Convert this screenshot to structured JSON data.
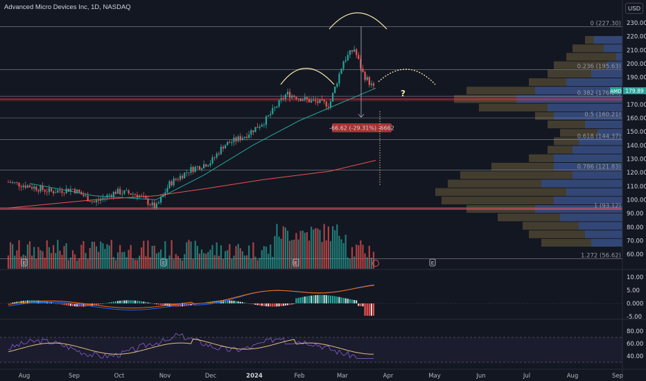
{
  "header": {
    "title": "Advanced Micro Devices Inc, 1D, NASDAQ",
    "currency_button": "USD"
  },
  "colors": {
    "background": "#131722",
    "up": "#26a69a",
    "down": "#ef5350",
    "fib_line": "#b2b5be",
    "support_line": "#f23645",
    "ema_fast": "#26a69a",
    "ema_slow": "#ef5350",
    "arc": "#f5e6a8",
    "macd": "#2962ff",
    "signal": "#ff6d00",
    "rsi": "#7e57c2",
    "rsi_ma": "#e6c27a",
    "volume_profile_up": "#2a4fa6",
    "volume_profile_down": "#6b5d3a"
  },
  "annotations": {
    "question_mark": "?",
    "measure_label": "-66.62 (-29.31%) -6662",
    "price_badge_symbol": "AMD",
    "price_badge_value": "179.89",
    "earnings_marker": "E"
  },
  "chart_data": [
    {
      "type": "candlestick",
      "symbol": "AMD",
      "title": "Advanced Micro Devices Inc, 1D, NASDAQ",
      "ylim": [
        55,
        237
      ],
      "y_ticks": [
        230,
        220,
        210,
        200,
        190,
        180,
        170,
        160,
        150,
        140,
        130,
        120,
        110,
        100,
        90,
        80,
        70,
        60
      ],
      "x_ticks": [
        "Aug",
        "Sep",
        "Oct",
        "Nov",
        "Dec",
        "2024",
        "Feb",
        "Mar",
        "Apr",
        "May",
        "Jun",
        "Jul",
        "Aug",
        "Sep"
      ],
      "fib_levels": [
        {
          "ratio": "0",
          "price": 227.3
        },
        {
          "ratio": "0.236",
          "price": 195.63
        },
        {
          "ratio": "0.382",
          "price": 176.04
        },
        {
          "ratio": "0.5",
          "price": 160.21
        },
        {
          "ratio": "0.618",
          "price": 144.37
        },
        {
          "ratio": "0.786",
          "price": 121.83
        },
        {
          "ratio": "1",
          "price": 93.12
        },
        {
          "ratio": "1.272",
          "price": 56.62
        }
      ],
      "fib_labels": [
        "0 (227.30)",
        "0.236 (195.63)",
        "0.382 (176.04)",
        "0.5 (160.21)",
        "0.618 (144.37)",
        "0.786 (121.83)",
        "1 (93.12)",
        "1.272 (56.62)"
      ],
      "support_lines": [
        174.0,
        94.0
      ],
      "last_price": 179.89,
      "measure": {
        "from": 227.3,
        "to": 160.68,
        "change": -66.62,
        "percent": -29.31
      },
      "price_path": [
        [
          "2023-07-27",
          113
        ],
        [
          "2023-08-10",
          110
        ],
        [
          "2023-08-24",
          106
        ],
        [
          "2023-09-07",
          108
        ],
        [
          "2023-09-21",
          98
        ],
        [
          "2023-10-05",
          106
        ],
        [
          "2023-10-19",
          104
        ],
        [
          "2023-10-31",
          94
        ],
        [
          "2023-11-09",
          112
        ],
        [
          "2023-11-22",
          122
        ],
        [
          "2023-12-06",
          128
        ],
        [
          "2023-12-14",
          140
        ],
        [
          "2023-12-28",
          147
        ],
        [
          "2024-01-10",
          158
        ],
        [
          "2024-01-24",
          178
        ],
        [
          "2024-02-07",
          173
        ],
        [
          "2024-02-21",
          170
        ],
        [
          "2024-03-01",
          202
        ],
        [
          "2024-03-08",
          211
        ],
        [
          "2024-03-14",
          192
        ],
        [
          "2024-03-22",
          180
        ]
      ],
      "ema_fast_path": [
        [
          "2023-08-10",
          112
        ],
        [
          "2023-09-21",
          103
        ],
        [
          "2023-10-31",
          100
        ],
        [
          "2023-12-01",
          118
        ],
        [
          "2024-01-02",
          140
        ],
        [
          "2024-02-01",
          158
        ],
        [
          "2024-03-01",
          172
        ],
        [
          "2024-03-22",
          182
        ]
      ],
      "ema_slow_path": [
        [
          "2023-07-27",
          94
        ],
        [
          "2023-09-21",
          100
        ],
        [
          "2023-10-31",
          103
        ],
        [
          "2023-12-01",
          108
        ],
        [
          "2024-01-10",
          115
        ],
        [
          "2024-02-21",
          121
        ],
        [
          "2024-03-22",
          129
        ]
      ]
    },
    {
      "type": "bar",
      "name": "Volume",
      "colored_by": "candle direction"
    },
    {
      "type": "line",
      "name": "MACD",
      "ylim": [
        -6,
        13
      ],
      "y_ticks": [
        "10.00",
        "5.00",
        "0.000",
        "-5.00"
      ]
    },
    {
      "type": "line",
      "name": "RSI",
      "ylim": [
        32,
        88
      ],
      "y_ticks": [
        "80.00",
        "60.00",
        "40.00"
      ],
      "bands": [
        70,
        30
      ]
    }
  ]
}
